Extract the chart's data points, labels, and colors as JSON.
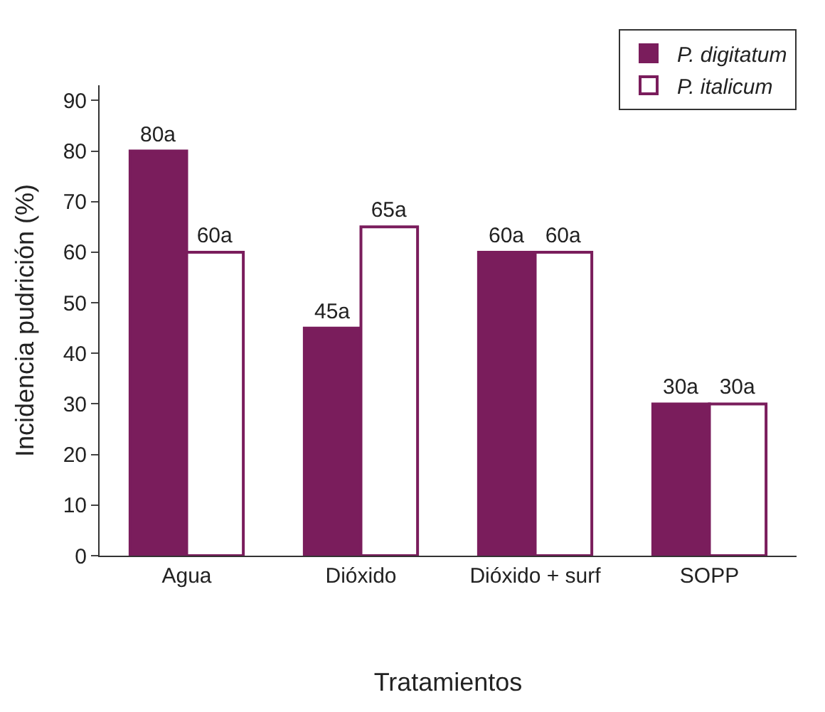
{
  "chart_data": {
    "type": "bar",
    "xlabel": "Tratamientos",
    "ylabel": "Incidencia pudrición (%)",
    "categories": [
      "Agua",
      "Dióxido",
      "Dióxido + surf",
      "SOPP"
    ],
    "series": [
      {
        "name": "P. digitatum",
        "color": "#7a1d5c",
        "values": [
          80,
          45,
          60,
          30
        ],
        "value_labels": [
          "80a",
          "45a",
          "60a",
          "30a"
        ]
      },
      {
        "name": "P. italicum",
        "color": "#ffffff",
        "values": [
          60,
          65,
          60,
          30
        ],
        "value_labels": [
          "60a",
          "65a",
          "60a",
          "30a"
        ]
      }
    ],
    "ylim": [
      0,
      93
    ],
    "yticks": [
      0,
      10,
      20,
      30,
      40,
      50,
      60,
      70,
      80,
      90
    ],
    "grid": false,
    "legend": "top right"
  }
}
